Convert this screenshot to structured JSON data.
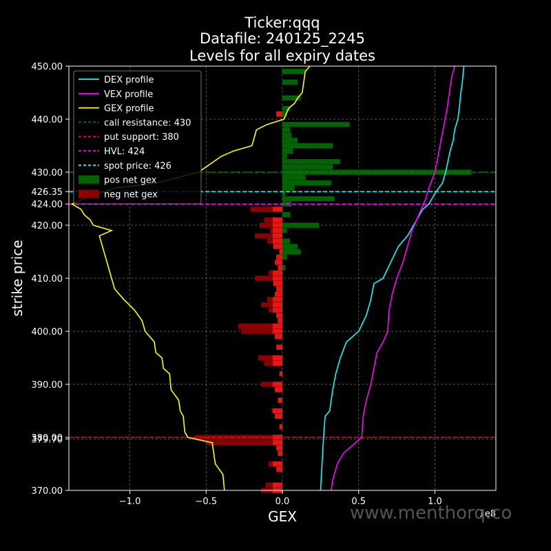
{
  "chart_data": {
    "type": "bar",
    "orientation": "horizontal",
    "title_lines": [
      "Ticker:qqq",
      "Datafile: 240125_2245",
      "Levels for all expiry dates"
    ],
    "xlabel": "GEX",
    "ylabel": "strike price",
    "x_multiplier_label": "1e8",
    "xlim": [
      -1.4,
      1.4
    ],
    "ylim": [
      370,
      450
    ],
    "x_ticks": [
      -1.0,
      -0.5,
      0.0,
      0.5,
      1.0
    ],
    "x_tick_labels": [
      "−1.0",
      "−0.5",
      "0.0",
      "0.5",
      "1.0"
    ],
    "y_ticks": [
      370,
      379.7,
      380,
      390,
      400,
      410,
      420,
      424,
      426.35,
      430,
      440,
      450
    ],
    "y_tick_labels": [
      "370.00",
      "379.70",
      "380.00",
      "390.00",
      "400.00",
      "410.00",
      "420.00",
      "424.00",
      "426.35",
      "430.00",
      "440.00",
      "450.00"
    ],
    "grid": true,
    "legend_position": "upper-left",
    "legend": [
      {
        "label": "DEX profile",
        "color": "#00ffff",
        "style": "line"
      },
      {
        "label": "VEX profile",
        "color": "#ff00ff",
        "style": "line"
      },
      {
        "label": "GEX profile",
        "color": "#ffff00",
        "style": "line"
      },
      {
        "label": "call resistance: 430",
        "color": "#008000",
        "style": "dashed"
      },
      {
        "label": "put support: 380",
        "color": "#ff0000",
        "style": "dashed"
      },
      {
        "label": "HVL: 424",
        "color": "#ff00ff",
        "style": "dashed"
      },
      {
        "label": "spot price: 426",
        "color": "#00ffff",
        "style": "dashed"
      },
      {
        "label": "pos net gex",
        "color": "#006400",
        "style": "box"
      },
      {
        "label": "neg net gex",
        "color": "#8b0000",
        "style": "box"
      }
    ],
    "levels": [
      {
        "name": "call resistance",
        "value": 430,
        "color": "#008000"
      },
      {
        "name": "put support",
        "value": 380,
        "color": "#ff0000"
      },
      {
        "name": "HVL",
        "value": 424,
        "color": "#ff00ff"
      },
      {
        "name": "spot price",
        "value": 426.35,
        "color": "#00ffff"
      }
    ],
    "pos_gex": [
      {
        "strike": 449,
        "value": 0.15
      },
      {
        "strike": 447,
        "value": 0.1
      },
      {
        "strike": 444,
        "value": 0.12
      },
      {
        "strike": 442,
        "value": 0.05
      },
      {
        "strike": 441,
        "value": 0.03
      },
      {
        "strike": 439,
        "value": 0.44
      },
      {
        "strike": 438,
        "value": 0.05
      },
      {
        "strike": 437,
        "value": 0.06
      },
      {
        "strike": 436,
        "value": 0.1
      },
      {
        "strike": 435,
        "value": 0.33
      },
      {
        "strike": 434,
        "value": 0.07
      },
      {
        "strike": 433,
        "value": 0.03
      },
      {
        "strike": 432,
        "value": 0.38
      },
      {
        "strike": 431,
        "value": 0.33
      },
      {
        "strike": 430,
        "value": 1.24
      },
      {
        "strike": 429,
        "value": 0.15
      },
      {
        "strike": 428,
        "value": 0.32
      },
      {
        "strike": 427,
        "value": 0.08
      },
      {
        "strike": 426,
        "value": 0.02
      },
      {
        "strike": 425,
        "value": 0.34
      },
      {
        "strike": 424,
        "value": 0.06
      },
      {
        "strike": 422,
        "value": 0.05
      },
      {
        "strike": 420,
        "value": 0.24
      },
      {
        "strike": 419,
        "value": 0.03
      },
      {
        "strike": 417,
        "value": 0.05
      },
      {
        "strike": 416,
        "value": 0.1
      },
      {
        "strike": 415,
        "value": 0.12
      },
      {
        "strike": 414,
        "value": 0.03
      },
      {
        "strike": 412,
        "value": 0.02
      }
    ],
    "neg_gex": [
      {
        "strike": 441,
        "value": -0.04
      },
      {
        "strike": 423,
        "value": -0.21
      },
      {
        "strike": 421,
        "value": -0.12
      },
      {
        "strike": 420,
        "value": -0.15
      },
      {
        "strike": 419,
        "value": -0.08
      },
      {
        "strike": 418,
        "value": -0.18
      },
      {
        "strike": 417,
        "value": -0.1
      },
      {
        "strike": 416,
        "value": -0.06
      },
      {
        "strike": 415,
        "value": -0.02
      },
      {
        "strike": 414,
        "value": -0.04
      },
      {
        "strike": 413,
        "value": -0.05
      },
      {
        "strike": 412,
        "value": -0.03
      },
      {
        "strike": 411,
        "value": -0.09
      },
      {
        "strike": 410,
        "value": -0.18
      },
      {
        "strike": 409,
        "value": -0.06
      },
      {
        "strike": 408,
        "value": -0.04
      },
      {
        "strike": 407,
        "value": -0.05
      },
      {
        "strike": 406,
        "value": -0.1
      },
      {
        "strike": 405,
        "value": -0.14
      },
      {
        "strike": 404,
        "value": -0.09
      },
      {
        "strike": 403,
        "value": -0.04
      },
      {
        "strike": 402,
        "value": -0.03
      },
      {
        "strike": 401,
        "value": -0.29
      },
      {
        "strike": 400,
        "value": -0.27
      },
      {
        "strike": 399,
        "value": -0.05
      },
      {
        "strike": 397,
        "value": -0.04
      },
      {
        "strike": 395,
        "value": -0.16
      },
      {
        "strike": 394,
        "value": -0.12
      },
      {
        "strike": 392,
        "value": -0.02
      },
      {
        "strike": 390,
        "value": -0.14
      },
      {
        "strike": 389,
        "value": -0.05
      },
      {
        "strike": 387,
        "value": -0.03
      },
      {
        "strike": 385,
        "value": -0.07
      },
      {
        "strike": 384,
        "value": -0.05
      },
      {
        "strike": 382,
        "value": -0.02
      },
      {
        "strike": 380,
        "value": -0.57
      },
      {
        "strike": 379,
        "value": -0.5
      },
      {
        "strike": 378,
        "value": -0.04
      },
      {
        "strike": 377,
        "value": -0.03
      },
      {
        "strike": 375,
        "value": -0.09
      },
      {
        "strike": 374,
        "value": -0.04
      },
      {
        "strike": 371,
        "value": -0.11
      },
      {
        "strike": 370,
        "value": -0.14
      }
    ],
    "series": [
      {
        "name": "DEX profile",
        "color": "#00ffff",
        "points": [
          [
            0.25,
            370
          ],
          [
            0.26,
            375
          ],
          [
            0.27,
            380
          ],
          [
            0.28,
            384
          ],
          [
            0.31,
            385
          ],
          [
            0.33,
            389
          ],
          [
            0.35,
            392
          ],
          [
            0.38,
            395
          ],
          [
            0.42,
            398
          ],
          [
            0.46,
            399
          ],
          [
            0.5,
            400
          ],
          [
            0.55,
            403
          ],
          [
            0.58,
            406
          ],
          [
            0.6,
            409
          ],
          [
            0.66,
            410
          ],
          [
            0.71,
            413
          ],
          [
            0.76,
            416
          ],
          [
            0.82,
            418
          ],
          [
            0.86,
            420
          ],
          [
            0.88,
            421
          ],
          [
            0.92,
            423
          ],
          [
            0.96,
            424
          ],
          [
            0.98,
            425
          ],
          [
            1.0,
            426
          ],
          [
            1.05,
            428
          ],
          [
            1.07,
            430
          ],
          [
            1.1,
            434
          ],
          [
            1.12,
            436
          ],
          [
            1.13,
            438
          ],
          [
            1.15,
            440
          ],
          [
            1.16,
            442
          ],
          [
            1.17,
            445
          ],
          [
            1.18,
            447
          ],
          [
            1.19,
            450
          ]
        ]
      },
      {
        "name": "VEX profile",
        "color": "#ff00ff",
        "points": [
          [
            0.32,
            370
          ],
          [
            0.33,
            372
          ],
          [
            0.36,
            375
          ],
          [
            0.4,
            377
          ],
          [
            0.48,
            379
          ],
          [
            0.52,
            380
          ],
          [
            0.53,
            384
          ],
          [
            0.55,
            387
          ],
          [
            0.58,
            390
          ],
          [
            0.6,
            393
          ],
          [
            0.62,
            396
          ],
          [
            0.66,
            398
          ],
          [
            0.69,
            400
          ],
          [
            0.7,
            404
          ],
          [
            0.72,
            407
          ],
          [
            0.75,
            410
          ],
          [
            0.79,
            413
          ],
          [
            0.82,
            416
          ],
          [
            0.85,
            419
          ],
          [
            0.88,
            421
          ],
          [
            0.91,
            423
          ],
          [
            0.94,
            425
          ],
          [
            0.96,
            427
          ],
          [
            1.0,
            430
          ],
          [
            1.02,
            433
          ],
          [
            1.04,
            436
          ],
          [
            1.06,
            439
          ],
          [
            1.08,
            442
          ],
          [
            1.09,
            444
          ],
          [
            1.1,
            446
          ],
          [
            1.11,
            448
          ],
          [
            1.13,
            450
          ]
        ]
      },
      {
        "name": "GEX profile",
        "color": "#ffff00",
        "points": [
          [
            -0.38,
            370
          ],
          [
            -0.39,
            373
          ],
          [
            -0.44,
            375
          ],
          [
            -0.45,
            377
          ],
          [
            -0.46,
            379
          ],
          [
            -0.62,
            380
          ],
          [
            -0.64,
            381
          ],
          [
            -0.65,
            384
          ],
          [
            -0.67,
            385
          ],
          [
            -0.68,
            387
          ],
          [
            -0.73,
            389
          ],
          [
            -0.74,
            392
          ],
          [
            -0.78,
            393
          ],
          [
            -0.79,
            395
          ],
          [
            -0.83,
            396
          ],
          [
            -0.84,
            398
          ],
          [
            -0.9,
            400
          ],
          [
            -0.92,
            402
          ],
          [
            -0.97,
            404
          ],
          [
            -1.04,
            406
          ],
          [
            -1.1,
            408
          ],
          [
            -1.12,
            410
          ],
          [
            -1.14,
            412
          ],
          [
            -1.16,
            414
          ],
          [
            -1.18,
            416
          ],
          [
            -1.2,
            418
          ],
          [
            -1.12,
            419
          ],
          [
            -1.24,
            420
          ],
          [
            -1.26,
            421
          ],
          [
            -1.3,
            422
          ],
          [
            -1.32,
            423
          ],
          [
            -1.38,
            424
          ],
          [
            -1.3,
            425
          ],
          [
            -1.1,
            427
          ],
          [
            -0.82,
            428
          ],
          [
            -0.55,
            430
          ],
          [
            -0.5,
            431
          ],
          [
            -0.4,
            433
          ],
          [
            -0.32,
            434
          ],
          [
            -0.2,
            435
          ],
          [
            -0.18,
            437
          ],
          [
            -0.17,
            438
          ],
          [
            -0.1,
            439
          ],
          [
            0.01,
            440
          ],
          [
            0.04,
            442
          ],
          [
            0.08,
            443
          ],
          [
            0.1,
            444
          ],
          [
            0.13,
            445
          ],
          [
            0.14,
            447
          ],
          [
            0.15,
            449
          ],
          [
            0.18,
            450
          ]
        ]
      }
    ]
  },
  "watermark": "www.menthorq.co"
}
